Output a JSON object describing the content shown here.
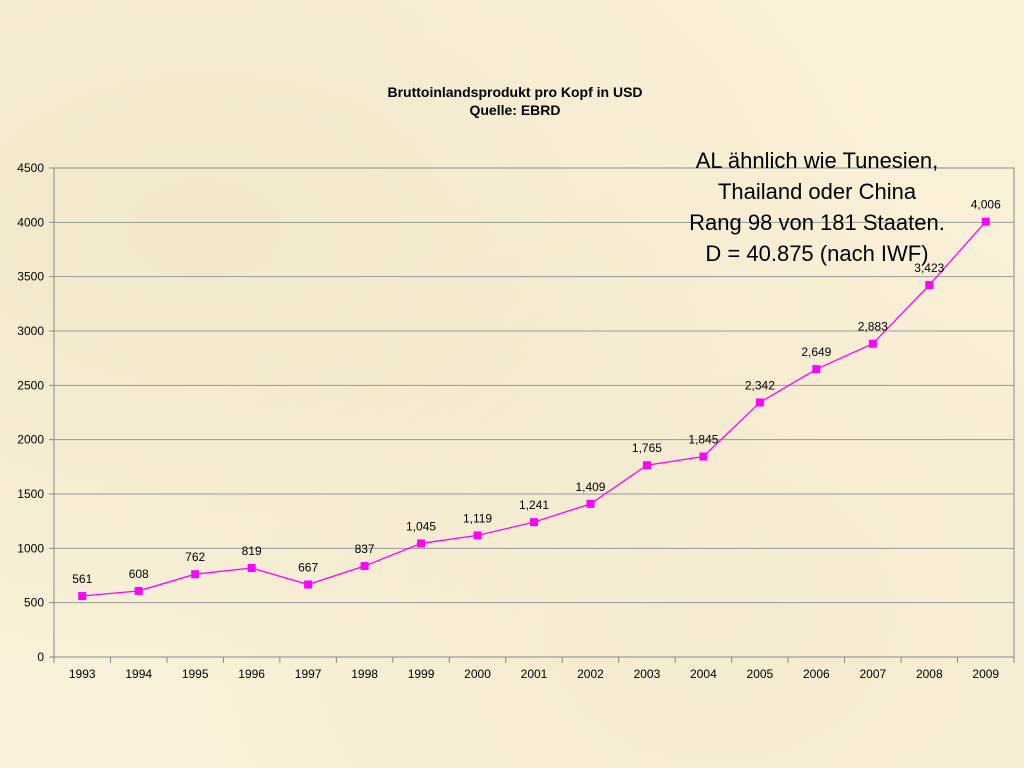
{
  "chart_data": {
    "type": "line",
    "title": "Bruttoinlandsprodukt pro Kopf in USD",
    "subtitle": "Quelle: EBRD",
    "categories": [
      "1993",
      "1994",
      "1995",
      "1996",
      "1997",
      "1998",
      "1999",
      "2000",
      "2001",
      "2002",
      "2003",
      "2004",
      "2005",
      "2006",
      "2007",
      "2008",
      "2009"
    ],
    "series": [
      {
        "values": [
          561,
          608,
          762,
          819,
          667,
          837,
          1045,
          1119,
          1241,
          1409,
          1765,
          1845,
          2342,
          2649,
          2883,
          3423,
          4006
        ],
        "labels": [
          "561",
          "608",
          "762",
          "819",
          "667",
          "837",
          "1,045",
          "1,119",
          "1,241",
          "1,409",
          "1,765",
          "1,845",
          "2,342",
          "2,649",
          "2,883",
          "3,423",
          "4,006"
        ],
        "color": "#ff00ff"
      }
    ],
    "ylim": [
      0,
      4500
    ],
    "yticks": [
      "0",
      "500",
      "1000",
      "1500",
      "2000",
      "2500",
      "3000",
      "3500",
      "4000",
      "4500"
    ],
    "grid": true
  },
  "annotation": {
    "lines": [
      "AL ähnlich wie Tunesien,",
      "Thailand oder China",
      "Rang 98 von 181 Staaten.",
      "D = 40.875 (nach IWF)"
    ]
  }
}
